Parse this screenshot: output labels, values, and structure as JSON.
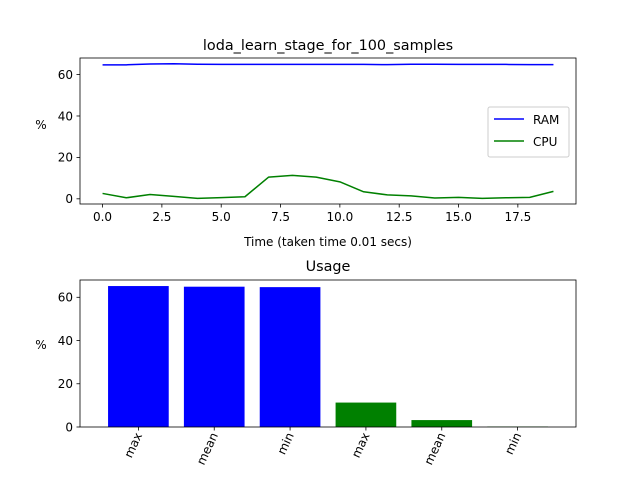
{
  "chart_data": [
    {
      "type": "line",
      "title": "loda_learn_stage_for_100_samples",
      "xlabel": "Time (taken time 0.01 secs)",
      "ylabel": "%",
      "xlim": [
        -0.95,
        19.95
      ],
      "ylim": [
        -2.5,
        68
      ],
      "xticks": [
        "0.0",
        "2.5",
        "5.0",
        "7.5",
        "10.0",
        "12.5",
        "15.0",
        "17.5"
      ],
      "yticks": [
        "0",
        "20",
        "40",
        "60"
      ],
      "legend_position": "center-right",
      "grid": false,
      "x": [
        0,
        1,
        2,
        3,
        4,
        5,
        6,
        7,
        8,
        9,
        10,
        11,
        12,
        13,
        14,
        15,
        16,
        17,
        18,
        19
      ],
      "series": [
        {
          "name": "RAM",
          "color": "#0000ff",
          "values": [
            64.7,
            64.7,
            65.1,
            65.2,
            65.0,
            64.9,
            64.9,
            64.9,
            64.9,
            64.9,
            64.9,
            64.9,
            64.8,
            65.0,
            65.0,
            64.9,
            64.9,
            64.9,
            64.8,
            64.8
          ]
        },
        {
          "name": "CPU",
          "color": "#008000",
          "values": [
            2.6,
            0.5,
            2.1,
            1.2,
            0.2,
            0.6,
            1.0,
            10.5,
            11.3,
            10.5,
            8.2,
            3.4,
            1.9,
            1.4,
            0.4,
            0.7,
            0.2,
            0.5,
            0.7,
            3.6
          ]
        }
      ]
    },
    {
      "type": "bar",
      "title": "Usage",
      "ylabel": "%",
      "ylim": [
        0,
        68
      ],
      "yticks": [
        "0",
        "20",
        "40",
        "60"
      ],
      "grid": false,
      "categories": [
        "max",
        "mean",
        "min",
        "max",
        "mean",
        "min"
      ],
      "values": [
        65.2,
        64.9,
        64.7,
        11.3,
        3.2,
        0.2
      ],
      "colors": [
        "#0000ff",
        "#0000ff",
        "#0000ff",
        "#008000",
        "#008000",
        "#008000"
      ]
    }
  ]
}
